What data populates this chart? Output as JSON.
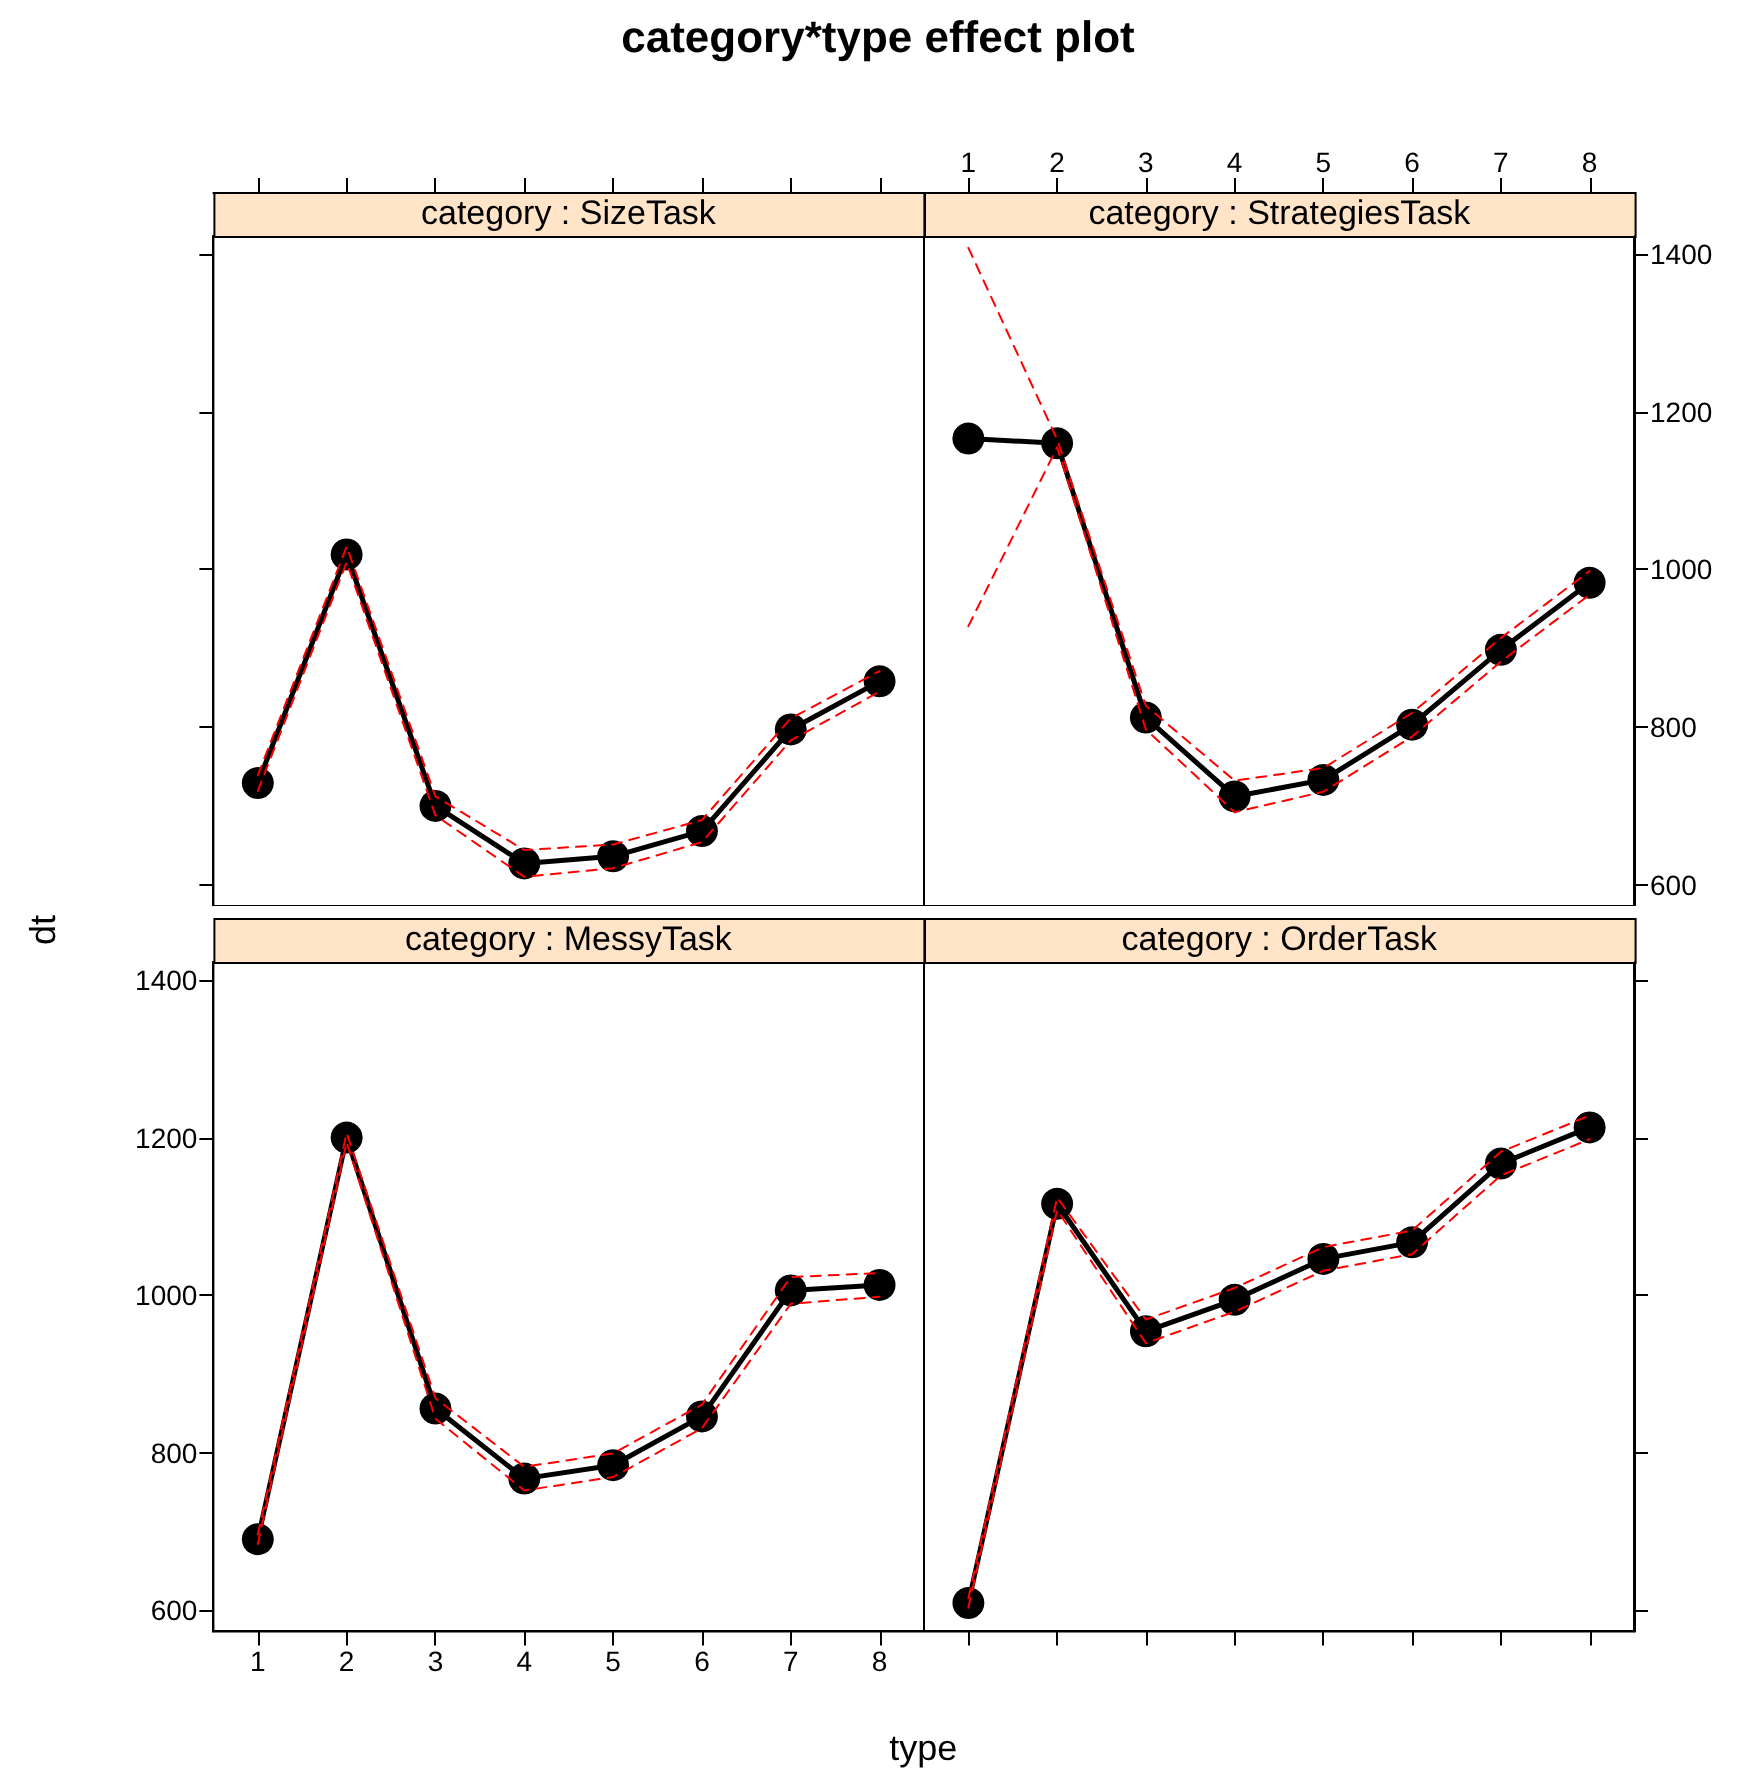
{
  "chart_data": [
    {
      "type": "line",
      "title": "category*type effect plot",
      "subtitle": "category : SizeTask",
      "x": [
        1,
        2,
        3,
        4,
        5,
        6,
        7,
        8
      ],
      "xlim": [
        0.5,
        8.5
      ],
      "xticks": [
        1,
        2,
        3,
        4,
        5,
        6,
        7,
        8
      ],
      "ylim": [
        573,
        1423
      ],
      "yticks": [
        600,
        800,
        1000,
        1200,
        1400
      ],
      "tick_labels": false,
      "marker": "circle",
      "line_style": "solid",
      "series": [
        {
          "color": "#000000",
          "values": [
            729,
            1019,
            700,
            627,
            636,
            668,
            797,
            858
          ]
        },
        {
          "color": "#ff0000",
          "marker": "none",
          "line_style": "dashed",
          "values": [
            719,
            1009,
            688,
            610,
            621,
            654,
            783,
            845
          ]
        },
        {
          "color": "#ff0000",
          "marker": "none",
          "line_style": "dashed",
          "values": [
            739,
            1029,
            712,
            644,
            651,
            682,
            811,
            871
          ]
        }
      ]
    },
    {
      "type": "line",
      "subtitle": "category : StrategiesTask",
      "x": [
        1,
        2,
        3,
        4,
        5,
        6,
        7,
        8
      ],
      "xlim": [
        0.5,
        8.5
      ],
      "xticks": [
        1,
        2,
        3,
        4,
        5,
        6,
        7,
        8
      ],
      "ylim": [
        573,
        1423
      ],
      "yticks": [
        600,
        800,
        1000,
        1200,
        1400
      ],
      "marker": "circle",
      "line_style": "solid",
      "series": [
        {
          "color": "#000000",
          "values": [
            1166,
            1160,
            812,
            712,
            733,
            803,
            898,
            983
          ]
        },
        {
          "color": "#ff0000",
          "marker": "none",
          "line_style": "dashed",
          "values": [
            928,
            1155,
            797,
            692,
            718,
            788,
            883,
            968
          ]
        },
        {
          "color": "#ff0000",
          "marker": "none",
          "line_style": "dashed",
          "values": [
            1408,
            1165,
            827,
            732,
            748,
            818,
            913,
            998
          ]
        }
      ]
    },
    {
      "type": "line",
      "subtitle": "category : MessyTask",
      "xlabel": "type",
      "ylabel": "dt",
      "x": [
        1,
        2,
        3,
        4,
        5,
        6,
        7,
        8
      ],
      "xlim": [
        0.5,
        8.5
      ],
      "xticks": [
        1,
        2,
        3,
        4,
        5,
        6,
        7,
        8
      ],
      "ylim": [
        573,
        1423
      ],
      "yticks": [
        600,
        800,
        1000,
        1200,
        1400
      ],
      "marker": "circle",
      "line_style": "solid",
      "series": [
        {
          "color": "#000000",
          "values": [
            690,
            1200,
            856,
            767,
            784,
            846,
            1006,
            1013
          ]
        },
        {
          "color": "#ff0000",
          "marker": "none",
          "line_style": "dashed",
          "values": [
            684,
            1194,
            843,
            752,
            769,
            831,
            989,
            998
          ]
        },
        {
          "color": "#ff0000",
          "marker": "none",
          "line_style": "dashed",
          "values": [
            696,
            1206,
            869,
            782,
            799,
            861,
            1023,
            1028
          ]
        }
      ]
    },
    {
      "type": "line",
      "subtitle": "category : OrderTask",
      "x": [
        1,
        2,
        3,
        4,
        5,
        6,
        7,
        8
      ],
      "xlim": [
        0.5,
        8.5
      ],
      "xticks": [
        1,
        2,
        3,
        4,
        5,
        6,
        7,
        8
      ],
      "ylim": [
        573,
        1423
      ],
      "yticks": [
        600,
        800,
        1000,
        1200,
        1400
      ],
      "tick_labels": false,
      "marker": "circle",
      "line_style": "solid",
      "series": [
        {
          "color": "#000000",
          "values": [
            609,
            1116,
            954,
            994,
            1046,
            1067,
            1167,
            1213
          ]
        },
        {
          "color": "#ff0000",
          "marker": "none",
          "line_style": "dashed",
          "values": [
            603,
            1108,
            939,
            979,
            1031,
            1052,
            1152,
            1198
          ]
        },
        {
          "color": "#ff0000",
          "marker": "none",
          "line_style": "dashed",
          "values": [
            615,
            1124,
            969,
            1009,
            1061,
            1082,
            1182,
            1228
          ]
        }
      ]
    }
  ]
}
